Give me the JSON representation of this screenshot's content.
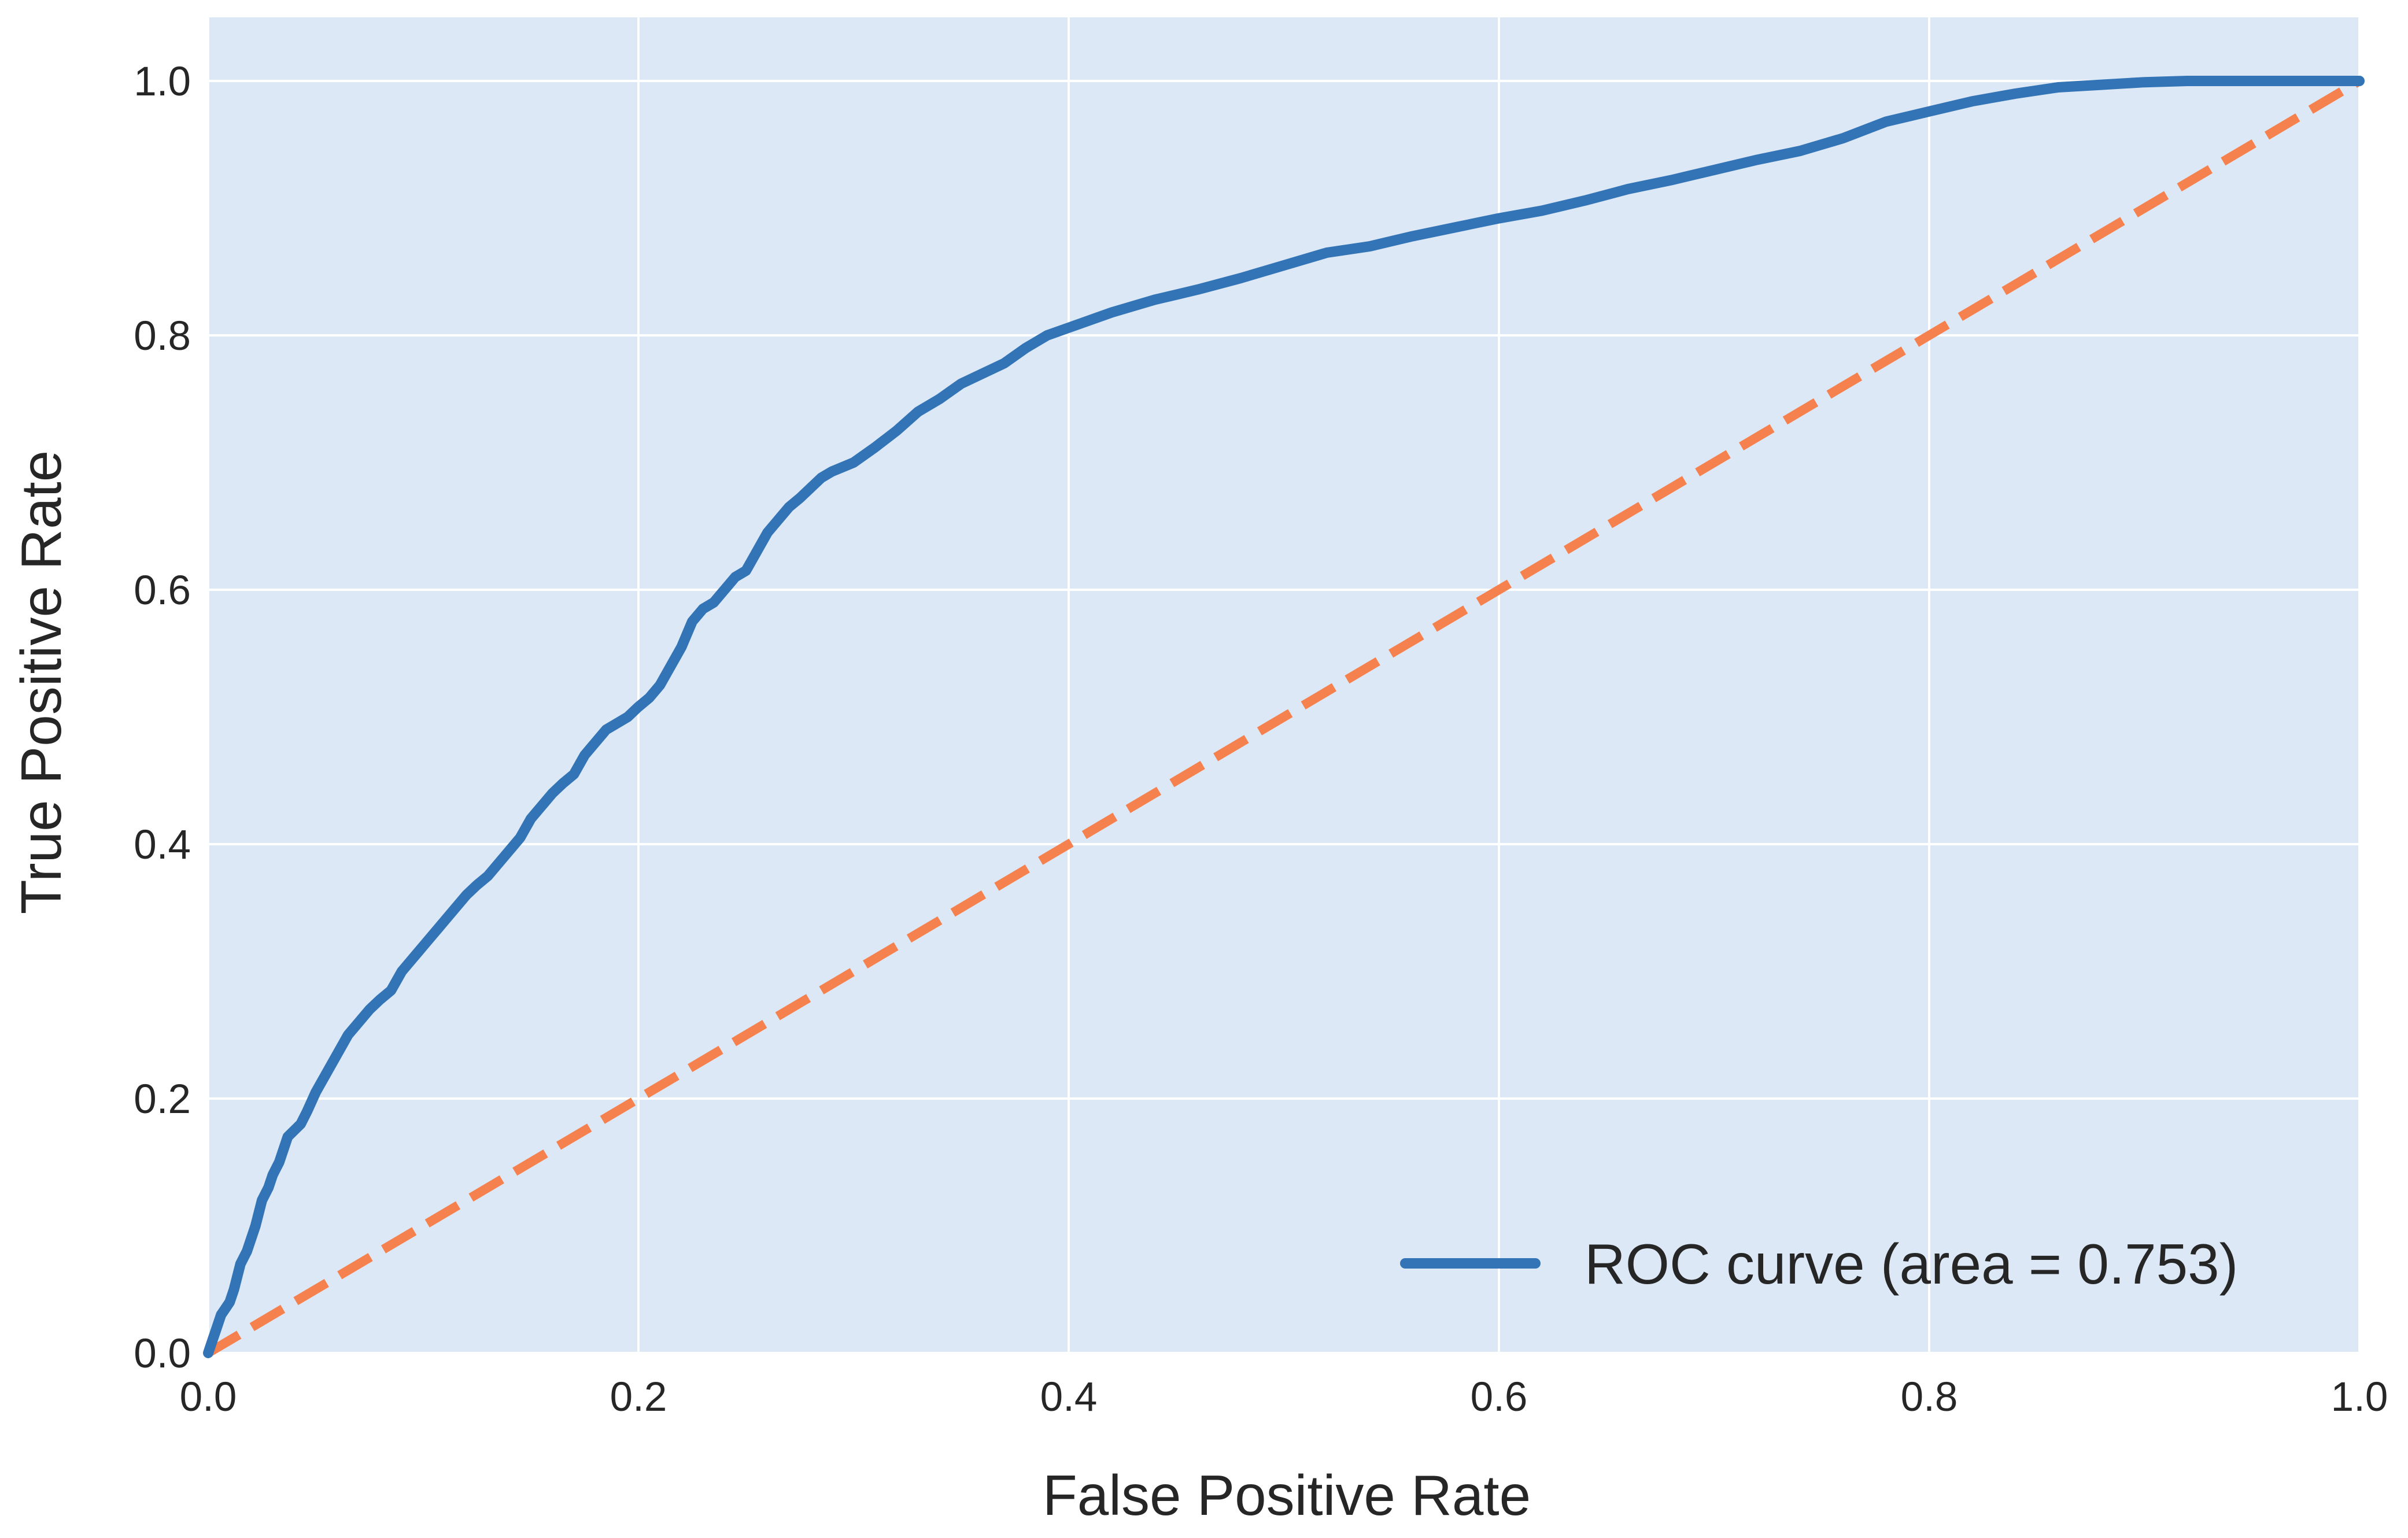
{
  "chart_data": {
    "type": "line",
    "title": "",
    "xlabel": "False Positive Rate",
    "ylabel": "True Positive Rate",
    "xlim": [
      0.0,
      1.0
    ],
    "ylim": [
      0.0,
      1.05
    ],
    "xticks": [
      "0.0",
      "0.2",
      "0.4",
      "0.6",
      "0.8",
      "1.0"
    ],
    "yticks": [
      "0.0",
      "0.2",
      "0.4",
      "0.6",
      "0.8",
      "1.0"
    ],
    "grid": true,
    "legend_position": "lower-right",
    "background_color": "#dce8f5",
    "grid_color": "#ffffff",
    "series": [
      {
        "name": "ROC curve (area = 0.753)",
        "color": "#3274b6",
        "style": "solid",
        "x": [
          0.0,
          0.002,
          0.004,
          0.006,
          0.008,
          0.01,
          0.012,
          0.015,
          0.018,
          0.02,
          0.022,
          0.025,
          0.028,
          0.03,
          0.033,
          0.035,
          0.037,
          0.04,
          0.043,
          0.046,
          0.05,
          0.055,
          0.06,
          0.065,
          0.07,
          0.075,
          0.08,
          0.085,
          0.09,
          0.095,
          0.1,
          0.105,
          0.11,
          0.115,
          0.12,
          0.125,
          0.13,
          0.135,
          0.14,
          0.145,
          0.15,
          0.155,
          0.16,
          0.165,
          0.17,
          0.175,
          0.18,
          0.185,
          0.19,
          0.195,
          0.2,
          0.205,
          0.21,
          0.215,
          0.22,
          0.225,
          0.23,
          0.235,
          0.24,
          0.245,
          0.25,
          0.255,
          0.26,
          0.265,
          0.27,
          0.275,
          0.28,
          0.285,
          0.29,
          0.3,
          0.31,
          0.32,
          0.33,
          0.34,
          0.35,
          0.36,
          0.37,
          0.38,
          0.39,
          0.4,
          0.42,
          0.44,
          0.46,
          0.48,
          0.5,
          0.52,
          0.54,
          0.56,
          0.58,
          0.6,
          0.62,
          0.64,
          0.66,
          0.68,
          0.7,
          0.72,
          0.74,
          0.76,
          0.78,
          0.8,
          0.82,
          0.84,
          0.86,
          0.88,
          0.9,
          0.92,
          0.94,
          0.96,
          0.98,
          1.0
        ],
        "y": [
          0.0,
          0.01,
          0.02,
          0.03,
          0.035,
          0.04,
          0.05,
          0.07,
          0.08,
          0.09,
          0.1,
          0.12,
          0.13,
          0.14,
          0.15,
          0.16,
          0.17,
          0.175,
          0.18,
          0.19,
          0.205,
          0.22,
          0.235,
          0.25,
          0.26,
          0.27,
          0.278,
          0.285,
          0.3,
          0.31,
          0.32,
          0.33,
          0.34,
          0.35,
          0.36,
          0.368,
          0.375,
          0.385,
          0.395,
          0.405,
          0.42,
          0.43,
          0.44,
          0.448,
          0.455,
          0.47,
          0.48,
          0.49,
          0.495,
          0.5,
          0.508,
          0.515,
          0.525,
          0.54,
          0.555,
          0.575,
          0.585,
          0.59,
          0.6,
          0.61,
          0.615,
          0.63,
          0.645,
          0.655,
          0.665,
          0.672,
          0.68,
          0.688,
          0.693,
          0.7,
          0.712,
          0.725,
          0.74,
          0.75,
          0.762,
          0.77,
          0.778,
          0.79,
          0.8,
          0.806,
          0.818,
          0.828,
          0.836,
          0.845,
          0.855,
          0.865,
          0.87,
          0.878,
          0.885,
          0.892,
          0.898,
          0.906,
          0.915,
          0.922,
          0.93,
          0.938,
          0.945,
          0.955,
          0.968,
          0.976,
          0.984,
          0.99,
          0.995,
          0.997,
          0.999,
          1.0,
          1.0,
          1.0,
          1.0,
          1.0
        ]
      },
      {
        "name": "",
        "color": "#f5814f",
        "style": "dashed",
        "x": [
          0.0,
          1.0
        ],
        "y": [
          0.0,
          1.0
        ]
      }
    ]
  }
}
